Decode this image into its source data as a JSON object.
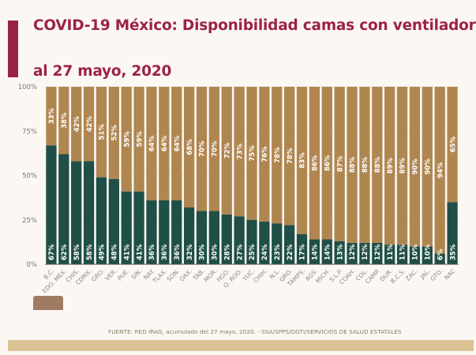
{
  "title_line1": "COVID-19 México: Disponibilidad camas con ventilador",
  "title_line2": "al 27 mayo, 2020",
  "footer": "FUENTE: RED IRAG, acumulado del 27 mayo, 2020. -  SSA/SPPS/DGTI/SERVICIOS DE SALUD ESTATALES",
  "colors": {
    "occupied": "#1f4f47",
    "available": "#b08650",
    "title": "#9b2247"
  },
  "chart_data": {
    "type": "bar",
    "stacked": true,
    "ylim": [
      0,
      100
    ],
    "yticks": [
      "0%",
      "25%",
      "50%",
      "75%",
      "100%"
    ],
    "grid": true,
    "categories": [
      "B.C.",
      "EDO. MEX.",
      "CHIS.",
      "CDMX.",
      "GRO.",
      "VER.",
      "PUE.",
      "SIN.",
      "NAY.",
      "TLAX.",
      "SON.",
      "OAX.",
      "TAB.",
      "MOR.",
      "HGO.",
      "Q. ROO.",
      "YUC.",
      "CHIH.",
      "N.L.",
      "QRO.",
      "TAMPS.",
      "AGS.",
      "MICH.",
      "S.L.P.",
      "COAH.",
      "COL.",
      "CAMP.",
      "DUR.",
      "B.C.S.",
      "ZAC.",
      "JAL.",
      "GTO.",
      "NAC"
    ],
    "series": [
      {
        "values": [
          67,
          62,
          58,
          58,
          49,
          48,
          41,
          41,
          36,
          36,
          36,
          32,
          30,
          30,
          28,
          27,
          25,
          24,
          23,
          22,
          17,
          14,
          14,
          13,
          12,
          12,
          12,
          11,
          11,
          10,
          10,
          6,
          35
        ]
      },
      {
        "values": [
          33,
          38,
          42,
          42,
          51,
          52,
          59,
          59,
          64,
          64,
          64,
          68,
          70,
          70,
          72,
          73,
          75,
          76,
          78,
          78,
          83,
          86,
          86,
          87,
          88,
          88,
          88,
          89,
          89,
          90,
          90,
          94,
          65
        ]
      }
    ]
  }
}
